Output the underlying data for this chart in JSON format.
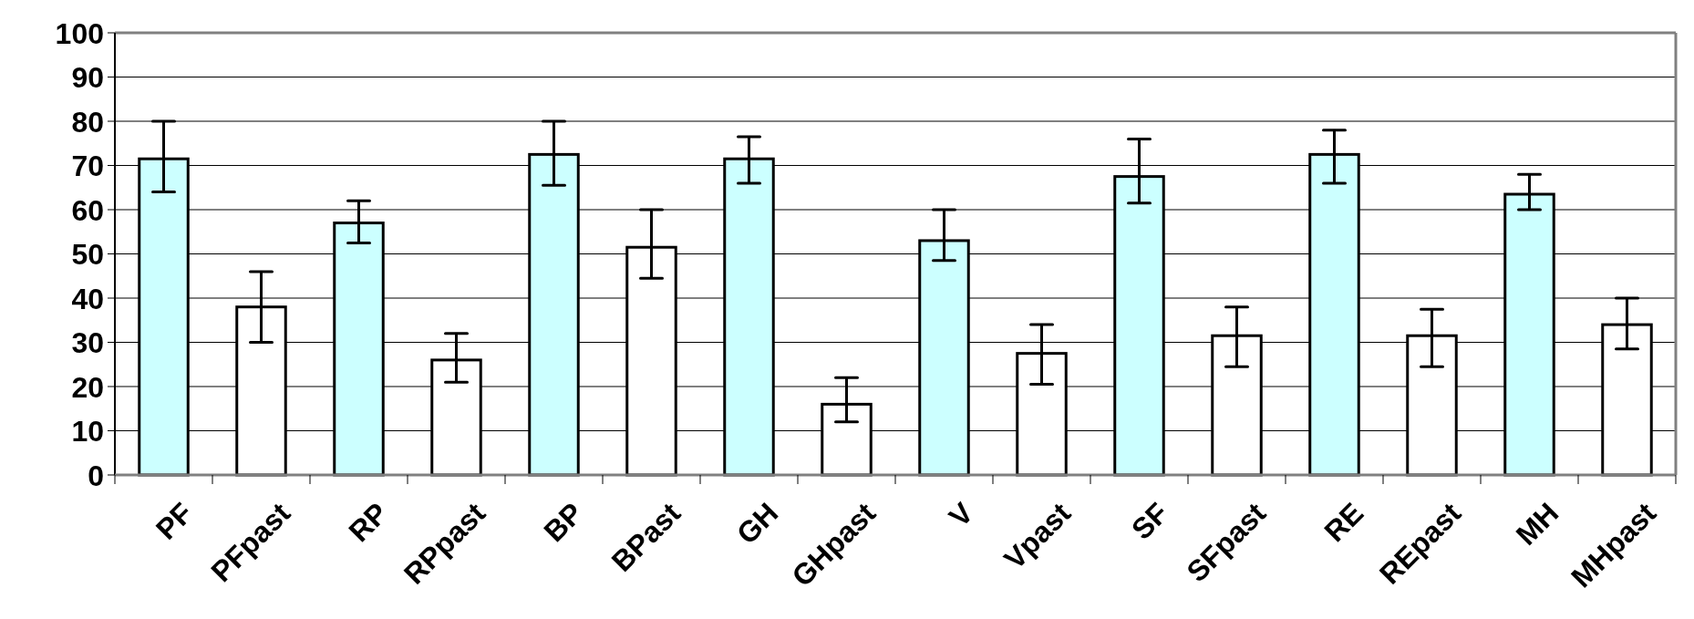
{
  "chart_data": {
    "type": "bar",
    "categories": [
      "PF",
      "PFpast",
      "RP",
      "RPpast",
      "BP",
      "BPast",
      "GH",
      "GHpast",
      "V",
      "Vpast",
      "SF",
      "SFpast",
      "RE",
      "REpast",
      "MH",
      "MHpast"
    ],
    "values": [
      71.5,
      38,
      57,
      26,
      72.5,
      51.5,
      71.5,
      16,
      53,
      27.5,
      67.5,
      31.5,
      72.5,
      31.5,
      63.5,
      34
    ],
    "errors": [
      [
        64,
        80
      ],
      [
        30,
        46
      ],
      [
        52.5,
        62
      ],
      [
        21,
        32
      ],
      [
        65.5,
        80
      ],
      [
        44.5,
        60
      ],
      [
        66,
        76.5
      ],
      [
        12,
        22
      ],
      [
        48.5,
        60
      ],
      [
        20.5,
        34
      ],
      [
        61.5,
        76
      ],
      [
        24.5,
        38
      ],
      [
        66,
        78
      ],
      [
        24.5,
        37.5
      ],
      [
        60,
        68
      ],
      [
        28.5,
        40
      ]
    ],
    "colors": [
      "#ccffff",
      "#ffffff",
      "#ccffff",
      "#ffffff",
      "#ccffff",
      "#ffffff",
      "#ccffff",
      "#ffffff",
      "#ccffff",
      "#ffffff",
      "#ccffff",
      "#ffffff",
      "#ccffff",
      "#ffffff",
      "#ccffff",
      "#ffffff"
    ],
    "ylim": [
      0,
      100
    ],
    "yticks": [
      0,
      10,
      20,
      30,
      40,
      50,
      60,
      70,
      80,
      90,
      100
    ],
    "grid": "y"
  }
}
